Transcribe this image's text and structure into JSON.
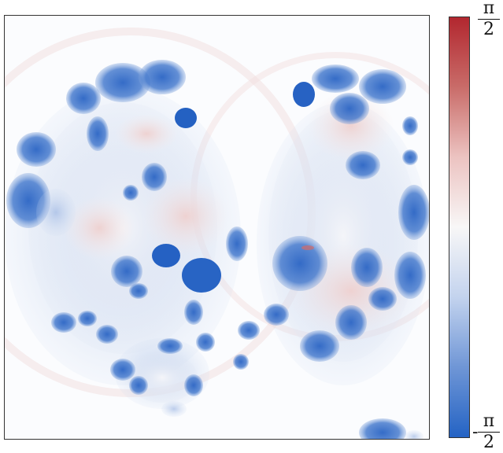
{
  "image": {
    "subject": "",
    "colormap": [
      "#2463c4",
      "#6f96d6",
      "#c3d3ee",
      "#f8f7f7",
      "#ecc3c1",
      "#c96c69",
      "#b2272f"
    ]
  },
  "colorbar": {
    "max_label": {
      "numerator": "π",
      "denominator": "2",
      "sign": ""
    },
    "min_label": {
      "numerator": "π",
      "denominator": "2",
      "sign": "-"
    }
  }
}
